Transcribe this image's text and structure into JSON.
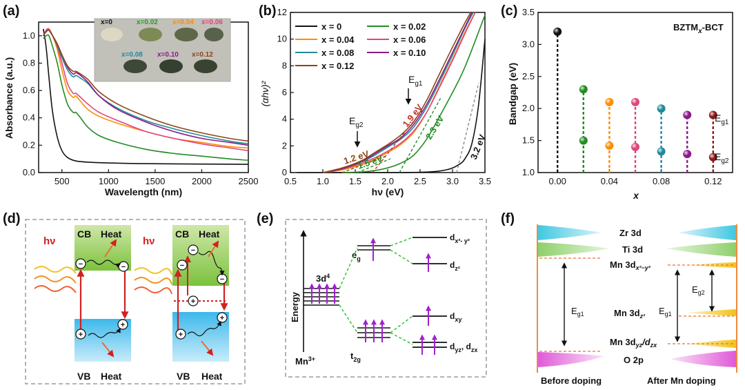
{
  "panels": {
    "a": "(a)",
    "b": "(b)",
    "c": "(c)",
    "d": "(d)",
    "e": "(e)",
    "f": "(f)"
  },
  "chart_data": [
    {
      "panel": "(a)",
      "type": "line",
      "xlabel": "Wavelength (nm)",
      "ylabel": "Absorbance (a.u.)",
      "xlim": [
        250,
        2500
      ],
      "ylim": [
        0,
        1.1
      ],
      "xticks": [
        "500",
        "1000",
        "1500",
        "2000",
        "2500"
      ],
      "xtick_values": [
        500,
        1000,
        1500,
        2000,
        2500
      ],
      "yticks": [
        "0.0",
        "0.2",
        "0.4",
        "0.6",
        "0.8",
        "1.0"
      ],
      "ytick_values": [
        0,
        0.2,
        0.4,
        0.6,
        0.8,
        1.0
      ],
      "inset_labels": [
        "x=0",
        "x=0.02",
        "x=0.04",
        "x=0.06",
        "x=0.08",
        "x=0.10",
        "x=0.12"
      ],
      "series": [
        {
          "color": "#111111",
          "x": [
            300,
            330,
            360,
            400,
            450,
            500,
            560,
            650,
            800,
            1000,
            1300,
            1600,
            2000,
            2500
          ],
          "y": [
            1.05,
            0.92,
            0.7,
            0.44,
            0.26,
            0.16,
            0.11,
            0.085,
            0.075,
            0.07,
            0.066,
            0.064,
            0.062,
            0.06
          ]
        },
        {
          "color": "#228b22",
          "x": [
            300,
            330,
            360,
            400,
            450,
            500,
            560,
            620,
            650,
            700,
            780,
            900,
            1100,
            1400,
            1700,
            2000,
            2300,
            2500
          ],
          "y": [
            0.98,
            1.0,
            1.0,
            0.92,
            0.8,
            0.64,
            0.5,
            0.44,
            0.44,
            0.4,
            0.33,
            0.27,
            0.22,
            0.17,
            0.14,
            0.12,
            0.1,
            0.09
          ]
        },
        {
          "color": "#ff8c00",
          "x": [
            300,
            330,
            360,
            400,
            450,
            500,
            560,
            620,
            650,
            700,
            780,
            900,
            1100,
            1400,
            1700,
            2000,
            2300,
            2500
          ],
          "y": [
            1.0,
            1.04,
            1.05,
            1.0,
            0.9,
            0.75,
            0.6,
            0.55,
            0.56,
            0.52,
            0.46,
            0.41,
            0.36,
            0.3,
            0.25,
            0.22,
            0.19,
            0.18
          ]
        },
        {
          "color": "#e0457b",
          "x": [
            300,
            330,
            360,
            400,
            450,
            500,
            560,
            620,
            650,
            700,
            780,
            900,
            1100,
            1400,
            1700,
            2000,
            2300,
            2500
          ],
          "y": [
            1.0,
            1.04,
            1.05,
            1.0,
            0.92,
            0.8,
            0.65,
            0.58,
            0.58,
            0.55,
            0.5,
            0.44,
            0.38,
            0.3,
            0.25,
            0.21,
            0.18,
            0.16
          ]
        },
        {
          "color": "#1f8a9a",
          "x": [
            300,
            330,
            360,
            400,
            450,
            500,
            560,
            620,
            650,
            700,
            780,
            900,
            1100,
            1400,
            1700,
            2000,
            2300,
            2500
          ],
          "y": [
            1.0,
            1.03,
            1.04,
            1.0,
            0.93,
            0.84,
            0.75,
            0.7,
            0.71,
            0.69,
            0.65,
            0.56,
            0.47,
            0.38,
            0.32,
            0.27,
            0.23,
            0.21
          ]
        },
        {
          "color": "#8b1a8b",
          "x": [
            300,
            330,
            360,
            400,
            450,
            500,
            560,
            620,
            650,
            700,
            780,
            900,
            1100,
            1400,
            1700,
            2000,
            2300,
            2500
          ],
          "y": [
            1.0,
            1.03,
            1.04,
            1.0,
            0.94,
            0.86,
            0.77,
            0.72,
            0.73,
            0.71,
            0.66,
            0.56,
            0.46,
            0.37,
            0.3,
            0.25,
            0.22,
            0.2
          ]
        },
        {
          "color": "#8b4513",
          "x": [
            300,
            330,
            360,
            400,
            450,
            500,
            560,
            620,
            650,
            700,
            780,
            900,
            1100,
            1400,
            1700,
            2000,
            2300,
            2500
          ],
          "y": [
            1.0,
            1.03,
            1.04,
            1.0,
            0.94,
            0.86,
            0.78,
            0.74,
            0.74,
            0.72,
            0.68,
            0.59,
            0.5,
            0.41,
            0.34,
            0.29,
            0.25,
            0.23
          ]
        }
      ]
    },
    {
      "panel": "(b)",
      "type": "line",
      "xlabel": "hν (eV)",
      "ylabel": "(αhν)²",
      "xlim": [
        0.5,
        3.5
      ],
      "ylim": [
        0,
        12
      ],
      "xticks": [
        "0.5",
        "1.0",
        "1.5",
        "2.0",
        "2.5",
        "3.0",
        "3.5"
      ],
      "xtick_values": [
        0.5,
        1.0,
        1.5,
        2.0,
        2.5,
        3.0,
        3.5
      ],
      "yticks": [
        "0",
        "2",
        "4",
        "6",
        "8",
        "10",
        "12"
      ],
      "ytick_values": [
        0,
        2,
        4,
        6,
        8,
        10,
        12
      ],
      "legend": [
        "x = 0",
        "x = 0.02",
        "x = 0.04",
        "x = 0.06",
        "x = 0.08",
        "x = 0.10",
        "x = 0.12"
      ],
      "annotations": {
        "eg1": "E",
        "eg1_sub": "g1",
        "eg2": "E",
        "eg2_sub": "g2",
        "v32": "3.2 eV",
        "v23": "2.3 eV",
        "v19": "1.9 eV",
        "v15": "1.5 eV",
        "v12": "1.2 eV"
      },
      "series": [
        {
          "name": "x = 0",
          "color": "#111111",
          "x": [
            0.6,
            1.5,
            2.5,
            2.9,
            3.1,
            3.2,
            3.3,
            3.4,
            3.5
          ],
          "y": [
            0,
            0,
            0.02,
            0.2,
            0.6,
            1.1,
            2.2,
            5.0,
            10.0
          ]
        },
        {
          "name": "x = 0.02",
          "color": "#228b22",
          "x": [
            1.3,
            1.6,
            1.8,
            2.0,
            2.2,
            2.4,
            2.6,
            2.8,
            3.0,
            3.2,
            3.5
          ],
          "y": [
            0,
            0.05,
            0.15,
            0.35,
            0.7,
            1.3,
            2.5,
            4.2,
            6.0,
            8.0,
            11.8
          ]
        },
        {
          "name": "x = 0.04",
          "color": "#ff8c00",
          "x": [
            1.0,
            1.3,
            1.6,
            1.8,
            2.0,
            2.2,
            2.4,
            2.6,
            2.8,
            3.0,
            3.2,
            3.35
          ],
          "y": [
            0,
            0.2,
            0.6,
            1.0,
            1.5,
            2.1,
            3.0,
            4.5,
            6.5,
            8.5,
            10.6,
            12
          ]
        },
        {
          "name": "x = 0.06",
          "color": "#e0457b",
          "x": [
            1.0,
            1.3,
            1.6,
            1.8,
            2.0,
            2.2,
            2.4,
            2.6,
            2.8,
            3.0,
            3.2,
            3.35
          ],
          "y": [
            0,
            0.25,
            0.7,
            1.1,
            1.6,
            2.2,
            3.1,
            4.5,
            6.4,
            8.4,
            10.5,
            12
          ]
        },
        {
          "name": "x = 0.08",
          "color": "#1f8a9a",
          "x": [
            1.0,
            1.3,
            1.6,
            1.8,
            2.0,
            2.2,
            2.4,
            2.6,
            2.8,
            3.0,
            3.2,
            3.32
          ],
          "y": [
            0,
            0.3,
            0.8,
            1.3,
            1.9,
            2.5,
            3.4,
            4.9,
            6.8,
            8.8,
            10.9,
            12
          ]
        },
        {
          "name": "x = 0.10",
          "color": "#8b1a8b",
          "x": [
            1.0,
            1.3,
            1.6,
            1.8,
            2.0,
            2.2,
            2.4,
            2.6,
            2.8,
            3.0,
            3.2,
            3.3
          ],
          "y": [
            0,
            0.3,
            0.85,
            1.4,
            2.0,
            2.6,
            3.6,
            5.1,
            7.0,
            9.0,
            11.0,
            12
          ]
        },
        {
          "name": "x = 0.12",
          "color": "#8b4513",
          "x": [
            1.0,
            1.3,
            1.6,
            1.8,
            2.0,
            2.2,
            2.4,
            2.6,
            2.8,
            3.0,
            3.2,
            3.28
          ],
          "y": [
            0,
            0.35,
            0.9,
            1.5,
            2.1,
            2.8,
            3.8,
            5.4,
            7.4,
            9.4,
            11.3,
            12
          ]
        }
      ]
    },
    {
      "panel": "(c)",
      "type": "scatter",
      "xlabel": "x",
      "ylabel": "Bandgap (eV)",
      "xlim": [
        -0.015,
        0.135
      ],
      "ylim": [
        1.0,
        3.5
      ],
      "xticks": [
        "0.00",
        "0.04",
        "0.08",
        "0.12"
      ],
      "xtick_values": [
        0,
        0.04,
        0.08,
        0.12
      ],
      "yticks": [
        "1.0",
        "1.5",
        "2.0",
        "2.5",
        "3.0",
        "3.5"
      ],
      "ytick_values": [
        1.0,
        1.5,
        2.0,
        2.5,
        3.0,
        3.5
      ],
      "annotation_main": "BZTM",
      "annotation_sub": "x",
      "annotation_tail": "-BCT",
      "label_eg1": "E",
      "label_eg1_sub": "g1",
      "label_eg2": "E",
      "label_eg2_sub": "g2",
      "points": [
        {
          "x": 0.0,
          "eg1": 3.2,
          "eg2": null,
          "color": "#111111"
        },
        {
          "x": 0.02,
          "eg1": 2.3,
          "eg2": 1.5,
          "color": "#228b22"
        },
        {
          "x": 0.04,
          "eg1": 2.1,
          "eg2": 1.42,
          "color": "#ff8c00"
        },
        {
          "x": 0.06,
          "eg1": 2.1,
          "eg2": 1.4,
          "color": "#e0457b"
        },
        {
          "x": 0.08,
          "eg1": 2.0,
          "eg2": 1.33,
          "color": "#1f8a9a"
        },
        {
          "x": 0.1,
          "eg1": 1.9,
          "eg2": 1.29,
          "color": "#8b1a8b"
        },
        {
          "x": 0.12,
          "eg1": 1.9,
          "eg2": 1.24,
          "color": "#8b1a1a"
        }
      ]
    }
  ],
  "panel_d": {
    "cb": "CB",
    "vb": "VB",
    "heat": "Heat",
    "hv": "hν"
  },
  "panel_e": {
    "energy": "Energy",
    "ion": "Mn",
    "ion_sup": "3+",
    "config": "3d",
    "config_sup": "4",
    "eg": "e",
    "eg_sub": "g",
    "t2g": "t",
    "t2g_sub": "2g",
    "dx2y2": "d",
    "dx2y2_sub": "x²- y²",
    "dz2": "d",
    "dz2_sub": "z²",
    "dxy": "d",
    "dxy_sub": "xy",
    "dyz": "d",
    "dyz_sub": "yz",
    "dyz_sep": ", d",
    "dzx_sub": "zx"
  },
  "panel_f": {
    "zr": "Zr 3d",
    "ti": "Ti 3d",
    "o": "O 2p",
    "mn_x2y2": "Mn 3d",
    "mn_x2y2_sub": "x²−y²",
    "mn_z2": "Mn 3d",
    "mn_z2_sub": "z²",
    "mn_yz": "Mn 3d",
    "mn_yz_sub": "yz",
    "mn_slash": "/d",
    "mn_zx_sub": "zx",
    "eg1": "E",
    "eg1_sub": "g1",
    "eg2": "E",
    "eg2_sub": "g2",
    "before": "Before doping",
    "after": "After Mn doping"
  }
}
